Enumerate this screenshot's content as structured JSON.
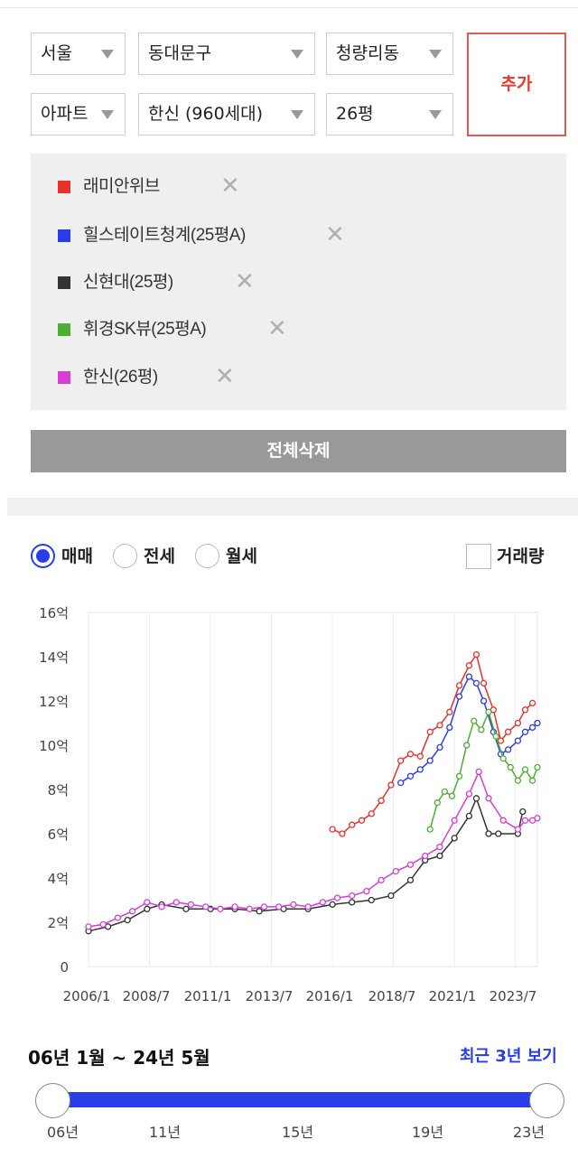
{
  "filters": {
    "city": "서울",
    "district": "동대문구",
    "dong": "청량리동",
    "type": "아파트",
    "complex": "한신 (960세대)",
    "size": "26평",
    "add_label": "추가"
  },
  "compare_list": [
    {
      "name": "래미안위브",
      "color": "#e8312a"
    },
    {
      "name": "힐스테이트청계(25평A)",
      "color": "#2a3ce8"
    },
    {
      "name": "신현대(25평)",
      "color": "#333333"
    },
    {
      "name": "휘경SK뷰(25평A)",
      "color": "#4caf33"
    },
    {
      "name": "한신(26평)",
      "color": "#d63ed6"
    }
  ],
  "remove_icon": "✕",
  "clear_all_label": "전체삭제",
  "trade_types": [
    {
      "label": "매매",
      "selected": true
    },
    {
      "label": "전세",
      "selected": false
    },
    {
      "label": "월세",
      "selected": false
    }
  ],
  "volume_label": "거래량",
  "chart_data": {
    "type": "line",
    "x_labels": [
      "2006/1",
      "2008/7",
      "2011/1",
      "2013/7",
      "2016/1",
      "2018/7",
      "2021/1",
      "2023/7"
    ],
    "y_labels": [
      "0",
      "2억",
      "4억",
      "6억",
      "8억",
      "10억",
      "12억",
      "14억",
      "16억"
    ],
    "ylim": [
      0,
      16
    ],
    "xlim": [
      2006.0,
      2024.4
    ],
    "grid": "vertical",
    "series": [
      {
        "name": "래미안위브",
        "color": "#e8312a",
        "x": [
          2016.0,
          2016.4,
          2016.8,
          2017.2,
          2017.6,
          2018.0,
          2018.4,
          2018.8,
          2019.2,
          2019.6,
          2020.0,
          2020.4,
          2020.8,
          2021.2,
          2021.6,
          2021.9,
          2022.2,
          2022.6,
          2022.9,
          2023.2,
          2023.6,
          2023.9,
          2024.2
        ],
        "y": [
          6.2,
          6.0,
          6.4,
          6.6,
          6.9,
          7.5,
          8.2,
          9.3,
          9.6,
          9.5,
          10.6,
          10.9,
          11.5,
          12.7,
          13.6,
          14.1,
          12.8,
          11.6,
          10.2,
          10.6,
          11.0,
          11.6,
          11.9
        ]
      },
      {
        "name": "힐스테이트청계(25평A)",
        "color": "#2a3ce8",
        "x": [
          2018.8,
          2019.2,
          2019.6,
          2020.0,
          2020.4,
          2020.8,
          2021.2,
          2021.6,
          2021.9,
          2022.2,
          2022.6,
          2022.9,
          2023.2,
          2023.6,
          2023.9,
          2024.2,
          2024.4
        ],
        "y": [
          8.3,
          8.6,
          8.9,
          9.3,
          9.9,
          10.8,
          12.2,
          13.1,
          12.8,
          12.0,
          10.6,
          9.6,
          9.8,
          10.2,
          10.6,
          10.8,
          11.0
        ]
      },
      {
        "name": "신현대(25평)",
        "color": "#333333",
        "x": [
          2006.0,
          2006.8,
          2007.6,
          2008.4,
          2009.0,
          2010.0,
          2011.0,
          2012.0,
          2013.0,
          2014.0,
          2015.0,
          2016.0,
          2016.8,
          2017.6,
          2018.4,
          2019.2,
          2019.8,
          2020.4,
          2021.0,
          2021.6,
          2021.9,
          2022.4,
          2022.8,
          2023.6,
          2023.8
        ],
        "y": [
          1.6,
          1.8,
          2.1,
          2.6,
          2.8,
          2.6,
          2.6,
          2.6,
          2.5,
          2.6,
          2.6,
          2.8,
          2.9,
          3.0,
          3.2,
          3.9,
          4.8,
          5.0,
          5.8,
          6.8,
          7.6,
          6.0,
          6.0,
          6.0,
          7.0
        ]
      },
      {
        "name": "휘경SK뷰(25평A)",
        "color": "#4caf33",
        "x": [
          2020.0,
          2020.3,
          2020.6,
          2020.9,
          2021.2,
          2021.5,
          2021.8,
          2022.1,
          2022.4,
          2022.7,
          2023.0,
          2023.3,
          2023.6,
          2023.9,
          2024.2,
          2024.4
        ],
        "y": [
          6.2,
          7.4,
          7.9,
          7.7,
          8.6,
          10.0,
          11.1,
          10.7,
          11.5,
          10.4,
          9.4,
          9.0,
          8.4,
          8.9,
          8.4,
          9.0
        ]
      },
      {
        "name": "한신(26평)",
        "color": "#d63ed6",
        "x": [
          2006.0,
          2006.6,
          2007.2,
          2007.8,
          2008.4,
          2009.0,
          2009.6,
          2010.2,
          2010.8,
          2011.4,
          2012.0,
          2012.6,
          2013.2,
          2013.8,
          2014.4,
          2015.0,
          2015.6,
          2016.2,
          2016.8,
          2017.4,
          2018.0,
          2018.6,
          2019.2,
          2019.8,
          2020.4,
          2021.0,
          2021.6,
          2022.0,
          2022.4,
          2023.0,
          2023.6,
          2023.9,
          2024.2,
          2024.4
        ],
        "y": [
          1.8,
          1.9,
          2.2,
          2.5,
          2.9,
          2.7,
          2.9,
          2.8,
          2.7,
          2.6,
          2.7,
          2.6,
          2.7,
          2.7,
          2.8,
          2.7,
          2.9,
          3.1,
          3.2,
          3.4,
          3.9,
          4.3,
          4.6,
          5.0,
          5.4,
          6.6,
          7.8,
          8.8,
          7.6,
          6.6,
          6.2,
          6.6,
          6.6,
          6.7
        ]
      }
    ]
  },
  "period_text": "06년 1월 ~ 24년 5월",
  "recent_label": "최근 3년 보기",
  "slider": {
    "start": "06년",
    "end": "24년",
    "ticks": [
      "06년",
      "11년",
      "15년",
      "19년",
      "23년"
    ]
  }
}
